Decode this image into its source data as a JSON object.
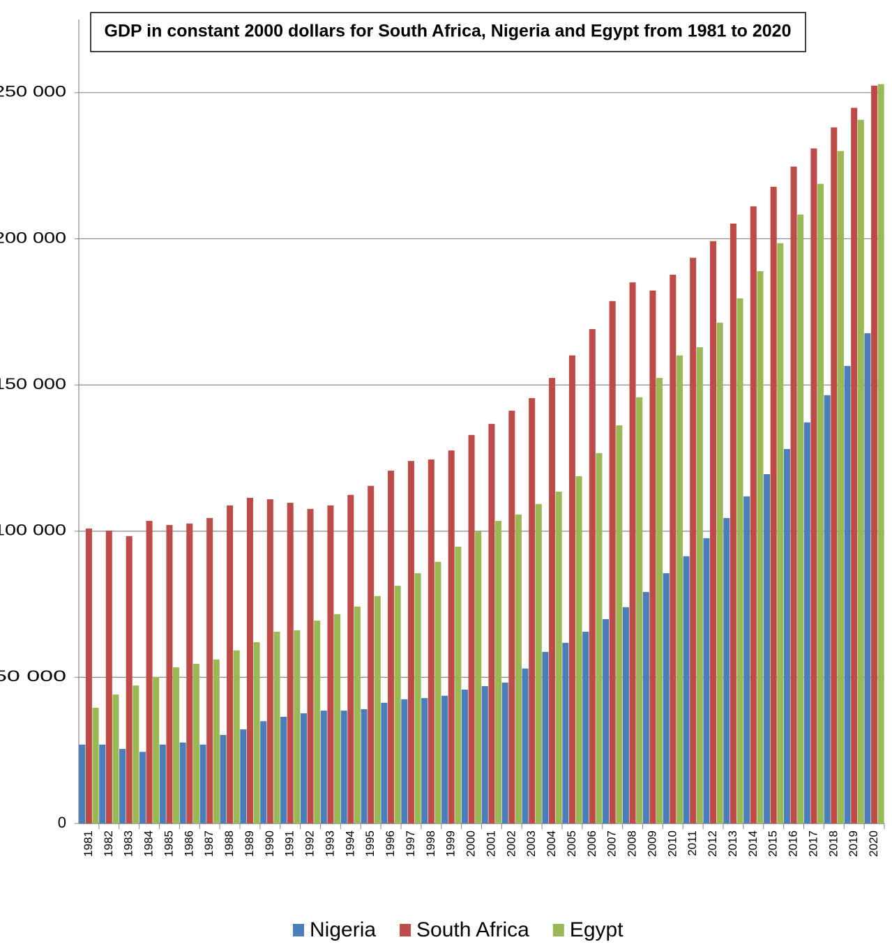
{
  "chart_data": {
    "type": "bar",
    "title": "GDP in constant 2000 dollars for South Africa, Nigeria and Egypt from 1981 to 2020",
    "categories": [
      "1981",
      "1982",
      "1983",
      "1984",
      "1985",
      "1986",
      "1987",
      "1988",
      "1989",
      "1990",
      "1991",
      "1992",
      "1993",
      "1994",
      "1995",
      "1996",
      "1997",
      "1998",
      "1999",
      "2000",
      "2001",
      "2002",
      "2003",
      "2004",
      "2005",
      "2006",
      "2007",
      "2008",
      "2009",
      "2010",
      "2011",
      "2012",
      "2013",
      "2014",
      "2015",
      "2016",
      "2017",
      "2018",
      "2019",
      "2020"
    ],
    "series": [
      {
        "name": "Nigeria",
        "color": "#4a7ebb",
        "values": [
          27000,
          27000,
          25500,
          24500,
          27000,
          27700,
          27000,
          30300,
          32200,
          35000,
          36500,
          37700,
          38600,
          38600,
          39100,
          41300,
          42500,
          42900,
          43700,
          45800,
          47000,
          48200,
          53000,
          58700,
          61800,
          65600,
          69900,
          74000,
          79200,
          85600,
          91400,
          97600,
          104500,
          111900,
          119500,
          128100,
          137200,
          146500,
          156500,
          167700
        ]
      },
      {
        "name": "South Africa",
        "color": "#be4b48",
        "values": [
          100900,
          100200,
          98300,
          103500,
          102100,
          102600,
          104500,
          108800,
          111400,
          110900,
          109700,
          107600,
          108800,
          112400,
          115500,
          120700,
          124000,
          124500,
          127600,
          132900,
          136700,
          141200,
          145500,
          152400,
          160100,
          169100,
          178700,
          185100,
          182300,
          187700,
          193500,
          199200,
          205200,
          211100,
          217800,
          224700,
          230900,
          238100,
          244800,
          252400
        ]
      },
      {
        "name": "Egypt",
        "color": "#98b954",
        "values": [
          39600,
          44100,
          47200,
          50100,
          53400,
          54600,
          56100,
          59200,
          62000,
          65600,
          66100,
          69400,
          71600,
          74200,
          77800,
          81300,
          85600,
          89500,
          94700,
          100000,
          103500,
          105700,
          109300,
          113500,
          118800,
          126700,
          136200,
          145800,
          152400,
          160100,
          162900,
          171300,
          179600,
          188900,
          198500,
          208300,
          218800,
          230000,
          240700,
          252900
        ]
      }
    ],
    "ylim": [
      0,
      275000
    ],
    "yticks": [
      0,
      {
        "value": 50000,
        "label": "50 000"
      },
      {
        "value": 100000,
        "label": "100 000"
      },
      {
        "value": 150000,
        "label": "150 000"
      },
      {
        "value": 200000,
        "label": "200 000"
      },
      {
        "value": 250000,
        "label": "250 000"
      }
    ],
    "grid": true,
    "legend": "bottom"
  }
}
